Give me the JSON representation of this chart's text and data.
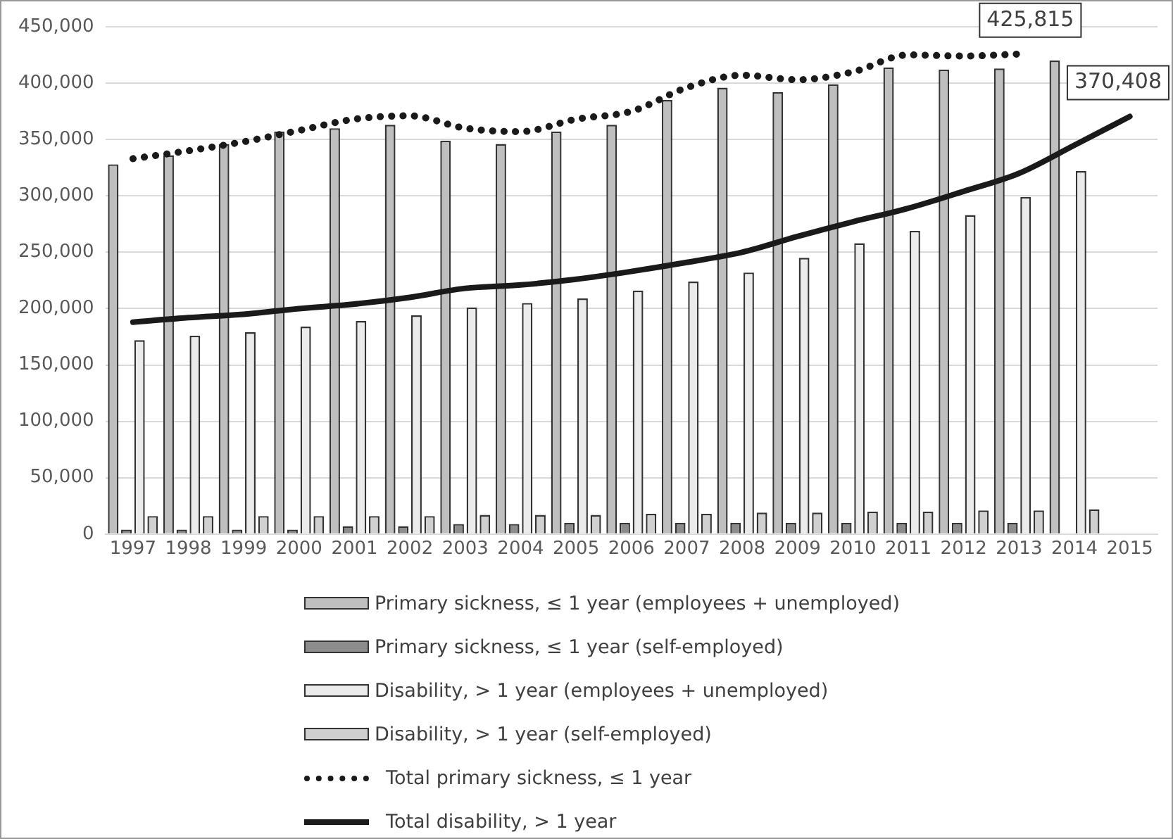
{
  "chart_data": {
    "type": "bar",
    "categories": [
      "1997",
      "1998",
      "1999",
      "2000",
      "2001",
      "2002",
      "2003",
      "2004",
      "2005",
      "2006",
      "2007",
      "2008",
      "2009",
      "2010",
      "2011",
      "2012",
      "2013",
      "2014",
      "2015"
    ],
    "series": [
      {
        "name": "Primary sickness, ≤ 1 year  (employees + unemployed)",
        "color": "#bfbfbf",
        "values": [
          328000,
          336000,
          346000,
          357000,
          360000,
          363000,
          349000,
          346000,
          357000,
          363000,
          385000,
          396000,
          392000,
          399000,
          414000,
          412000,
          413000,
          420000,
          null
        ]
      },
      {
        "name": "Primary sickness, ≤ 1 year (self-employed)",
        "color": "#8c8c8c",
        "values": [
          4000,
          4000,
          4000,
          4000,
          7000,
          7000,
          9000,
          9000,
          10000,
          10000,
          10000,
          10000,
          10000,
          10000,
          10000,
          10000,
          10000,
          null,
          null
        ]
      },
      {
        "name": "Disability, > 1 year  (employees + unemployed)",
        "color": "#ebebeb",
        "values": [
          172000,
          176000,
          179000,
          184000,
          189000,
          194000,
          201000,
          205000,
          209000,
          216000,
          224000,
          232000,
          245000,
          258000,
          269000,
          283000,
          299000,
          322000,
          null
        ]
      },
      {
        "name": "Disability, > 1 year (self-employed)",
        "color": "#d0d0d0",
        "values": [
          16000,
          16000,
          16000,
          16000,
          16000,
          16000,
          17000,
          17000,
          17000,
          18000,
          18000,
          19000,
          19000,
          20000,
          20000,
          21000,
          21000,
          22000,
          null
        ]
      },
      {
        "name": "Total primary sickness, ≤ 1 year",
        "type": "line",
        "color": "#1a1a1a",
        "line_style": "dotted",
        "values": [
          333000,
          340000,
          348000,
          358000,
          368000,
          371000,
          360000,
          357000,
          368000,
          375000,
          396000,
          407000,
          403000,
          410000,
          425000,
          424000,
          425815,
          null,
          null
        ]
      },
      {
        "name": "Total disability, > 1 year",
        "type": "line",
        "color": "#1a1a1a",
        "line_style": "solid",
        "values": [
          188000,
          192000,
          195000,
          200000,
          204000,
          210000,
          218000,
          221000,
          226000,
          233000,
          241000,
          250000,
          264000,
          277000,
          289000,
          304000,
          320000,
          345000,
          370408
        ]
      }
    ],
    "ylim": [
      0,
      450000
    ],
    "yticks": [
      {
        "value": 0,
        "label": "0"
      },
      {
        "value": 50000,
        "label": "50,000"
      },
      {
        "value": 100000,
        "label": "100,000"
      },
      {
        "value": 150000,
        "label": "150,000"
      },
      {
        "value": 200000,
        "label": "200,000"
      },
      {
        "value": 250000,
        "label": "250,000"
      },
      {
        "value": 300000,
        "label": "300,000"
      },
      {
        "value": 350000,
        "label": "350,000"
      },
      {
        "value": 400000,
        "label": "400,000"
      },
      {
        "value": 450000,
        "label": "450,000"
      }
    ],
    "grid": "y",
    "legend": "bottom",
    "marker": "none",
    "annotations": [
      {
        "text": "425,815",
        "x": "2013",
        "y": 425815
      },
      {
        "text": "370,408",
        "x": "2015",
        "y": 370408
      }
    ]
  }
}
